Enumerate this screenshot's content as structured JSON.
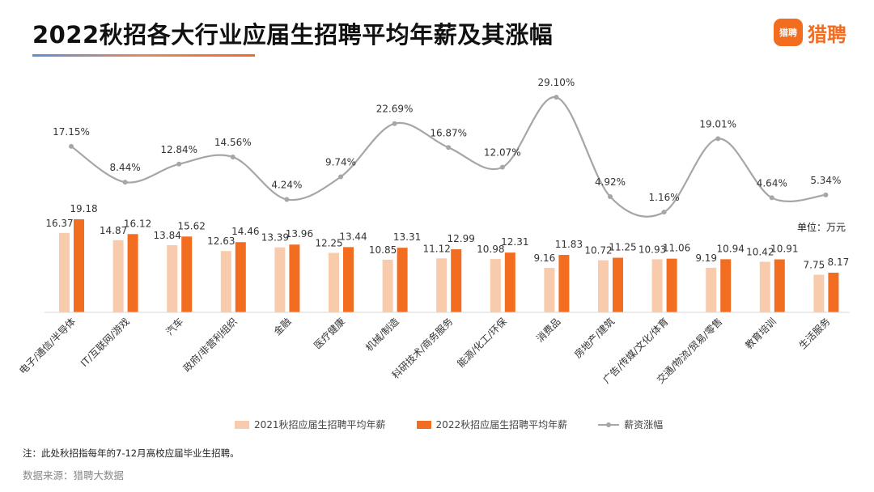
{
  "title": "2022秋招各大行业应届生招聘平均年薪及其涨幅",
  "logo": {
    "badge": "猎聘",
    "text": "猎聘",
    "color": "#f36d21"
  },
  "unit": "单位：万元",
  "note": "注：此处秋招指每年的7-12月高校应届毕业生招聘。",
  "source": "数据来源：猎聘大数据",
  "chart_data": {
    "type": "bar",
    "categories": [
      "电子/通信/半导体",
      "IT/互联网/游戏",
      "汽车",
      "政府/非营利组织",
      "金融",
      "医疗健康",
      "机械/制造",
      "科研技术/商务服务",
      "能源/化工/环保",
      "消费品",
      "房地产/建筑",
      "广告/传媒/文化/体育",
      "交通/物流/贸易/零售",
      "教育培训",
      "生活服务"
    ],
    "series": [
      {
        "name": "2021秋招应届生招聘平均年薪",
        "type": "bar",
        "color": "#f8cbad",
        "values": [
          16.37,
          14.87,
          13.84,
          12.63,
          13.39,
          12.25,
          10.85,
          11.12,
          10.98,
          9.16,
          10.72,
          10.93,
          9.19,
          10.42,
          7.75
        ]
      },
      {
        "name": "2022秋招应届生招聘平均年薪",
        "type": "bar",
        "color": "#f36d21",
        "values": [
          19.18,
          16.12,
          15.62,
          14.46,
          13.96,
          13.44,
          13.31,
          12.99,
          12.31,
          11.83,
          11.25,
          11.06,
          10.94,
          10.91,
          8.17
        ]
      },
      {
        "name": "薪资涨幅",
        "type": "line",
        "color": "#a6a6a6",
        "values": [
          17.15,
          8.44,
          12.84,
          14.56,
          4.24,
          9.74,
          22.69,
          16.87,
          12.07,
          29.1,
          4.92,
          1.16,
          19.01,
          4.64,
          5.34
        ],
        "labels": [
          "17.15%",
          "8.44%",
          "12.84%",
          "14.56%",
          "4.24%",
          "9.74%",
          "22.69%",
          "16.87%",
          "12.07%",
          "29.10%",
          "4.92%",
          "1.16%",
          "19.01%",
          "4.64%",
          "5.34%"
        ]
      }
    ],
    "bar_ylim": [
      0,
      20
    ],
    "line_ylim": [
      0,
      30
    ],
    "legend": "bottom"
  }
}
